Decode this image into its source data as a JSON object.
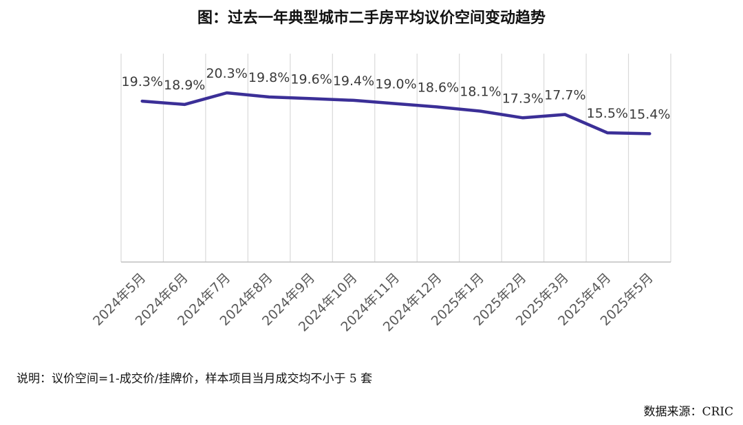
{
  "title": "图：过去一年典型城市二手房平均议价空间变动趋势",
  "note": "说明：议价空间=1-成交价/挂牌价，样本项目当月成交均不小于 5 套",
  "source": "数据来源：CRIC",
  "colors": {
    "line": "#3b2f97",
    "grid": "#d9d9d9",
    "text": "#595959"
  },
  "chart_data": {
    "type": "line",
    "title": "图：过去一年典型城市二手房平均议价空间变动趋势",
    "xlabel": "",
    "ylabel": "",
    "ylim": [
      0,
      0.25
    ],
    "grid": "vertical",
    "categories": [
      "2024年5月",
      "2024年6月",
      "2024年7月",
      "2024年8月",
      "2024年9月",
      "2024年10月",
      "2024年11月",
      "2024年12月",
      "2025年1月",
      "2025年2月",
      "2025年3月",
      "2025年4月",
      "2025年5月"
    ],
    "series": [
      {
        "name": "平均议价空间",
        "values": [
          0.193,
          0.189,
          0.203,
          0.198,
          0.196,
          0.194,
          0.19,
          0.186,
          0.181,
          0.173,
          0.177,
          0.155,
          0.154
        ],
        "labels": [
          "19.3%",
          "18.9%",
          "20.3%",
          "19.8%",
          "19.6%",
          "19.4%",
          "19.0%",
          "18.6%",
          "18.1%",
          "17.3%",
          "17.7%",
          "15.5%",
          "15.4%"
        ]
      }
    ]
  }
}
